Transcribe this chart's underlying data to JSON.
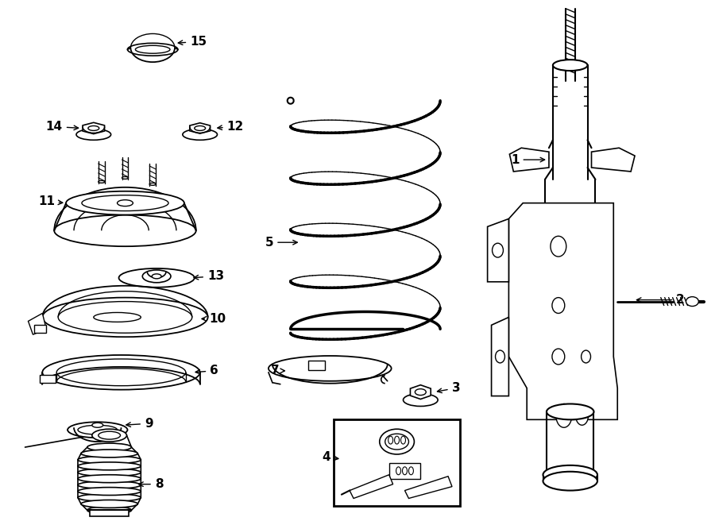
{
  "background_color": "#ffffff",
  "line_color": "#000000",
  "fig_width": 9.0,
  "fig_height": 6.61,
  "label_fontsize": 10,
  "label_fontsize_small": 9
}
